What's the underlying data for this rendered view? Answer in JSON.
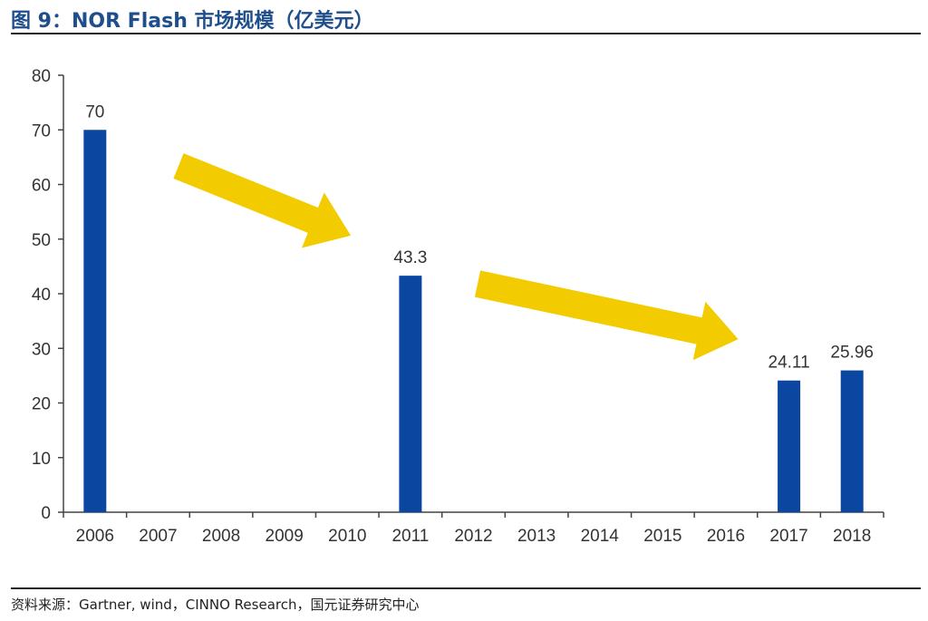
{
  "title": "图 9：NOR Flash 市场规模（亿美元）",
  "source": "资料来源：Gartner, wind，CINNO Research，国元证券研究中心",
  "chart_data": {
    "type": "bar",
    "categories": [
      "2006",
      "2007",
      "2008",
      "2009",
      "2010",
      "2011",
      "2012",
      "2013",
      "2014",
      "2015",
      "2016",
      "2017",
      "2018"
    ],
    "values": [
      70,
      null,
      null,
      null,
      null,
      43.3,
      null,
      null,
      null,
      null,
      null,
      24.11,
      25.96
    ],
    "data_labels": [
      "70",
      "",
      "",
      "",
      "",
      "43.3",
      "",
      "",
      "",
      "",
      "",
      "24.11",
      "25.96"
    ],
    "ylim": [
      0,
      80
    ],
    "yticks": [
      0,
      10,
      20,
      30,
      40,
      50,
      60,
      70,
      80
    ],
    "grid": false,
    "bar_color": "#0b47a1",
    "annotation_color": "#f2cc00"
  }
}
